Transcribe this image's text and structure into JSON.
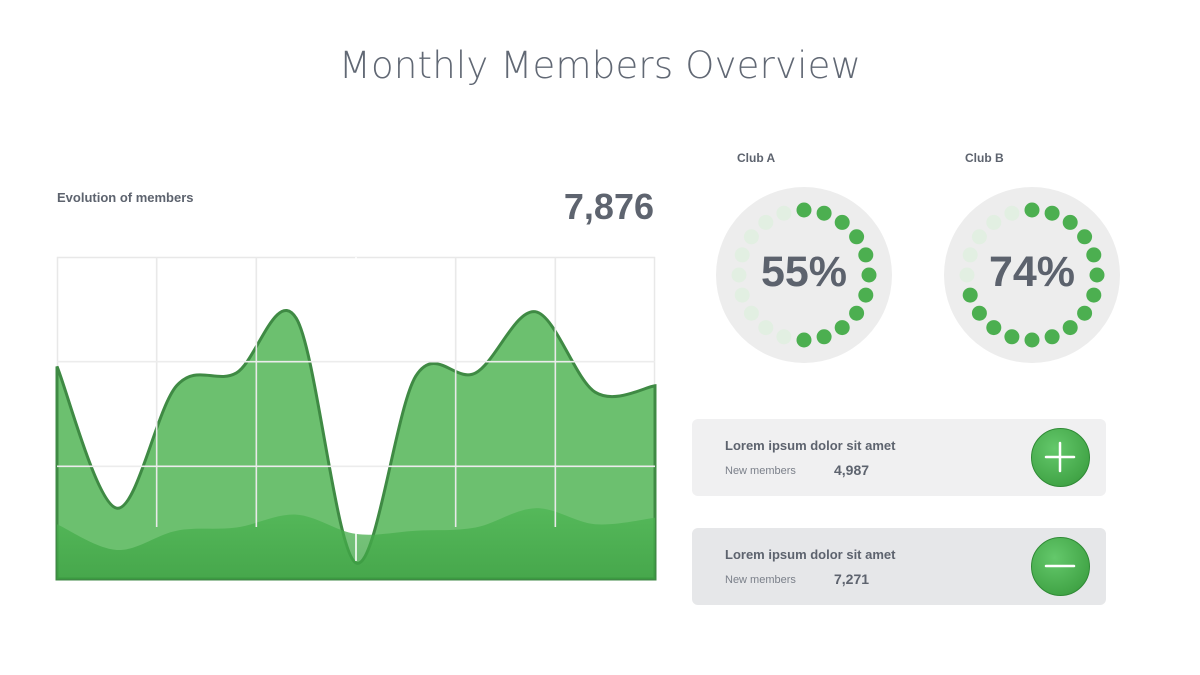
{
  "title": "Monthly Members Overview",
  "chart_data": {
    "type": "area",
    "title": "Evolution of members",
    "total": "7,876",
    "series": [
      {
        "values": [
          0.66,
          0.22,
          0.6,
          0.64,
          0.81,
          0.05,
          0.63,
          0.64,
          0.83,
          0.58,
          0.6
        ]
      },
      {
        "values": [
          0.17,
          0.09,
          0.15,
          0.16,
          0.2,
          0.14,
          0.15,
          0.16,
          0.22,
          0.17,
          0.19
        ]
      }
    ],
    "ylim": [
      0,
      1
    ],
    "grid": true,
    "colors": {
      "front": "#43a84a",
      "back": "#6cc06f",
      "line": "#3f8a44",
      "grid": "#e8e8e8"
    }
  },
  "clubs": [
    {
      "label": "Club A",
      "percent": 55,
      "display": "55%"
    },
    {
      "label": "Club B",
      "percent": 74,
      "display": "74%"
    }
  ],
  "cards": [
    {
      "title": "Lorem ipsum dolor sit amet",
      "sub": "New members",
      "value": "4,987",
      "icon": "plus-icon"
    },
    {
      "title": "Lorem ipsum dolor sit amet",
      "sub": "New members",
      "value": "7,271",
      "icon": "minus-icon"
    }
  ],
  "colors": {
    "accent": "#4caf50",
    "dot_off": "#e0eee0",
    "text": "#5d636e"
  }
}
